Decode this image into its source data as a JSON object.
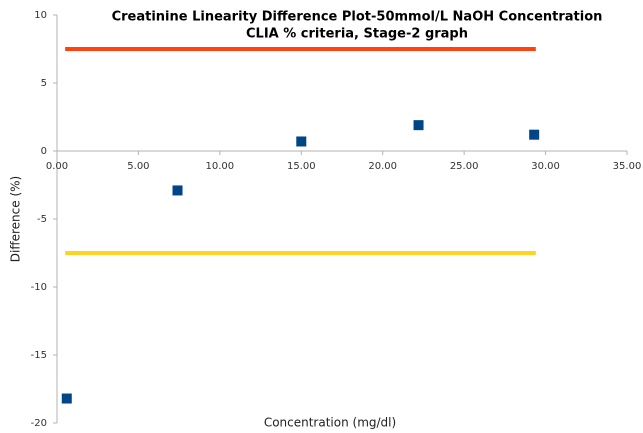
{
  "chart_data": {
    "type": "scatter",
    "title": "Creatinine Linearity Difference Plot-50mmol/L NaOH Concentration",
    "subtitle": "CLIA % criteria, Stage-2 graph",
    "x_label": "Concentration (mg/dl)",
    "y_label": "Difference (%)",
    "xlim": [
      0,
      35
    ],
    "ylim": [
      -20,
      10
    ],
    "xticks": [
      {
        "value": 0,
        "label": "0.00"
      },
      {
        "value": 5,
        "label": "5.00"
      },
      {
        "value": 10,
        "label": "10.00"
      },
      {
        "value": 15,
        "label": "15.00"
      },
      {
        "value": 20,
        "label": "20.00"
      },
      {
        "value": 25,
        "label": "25.00"
      },
      {
        "value": 30,
        "label": "30.00"
      },
      {
        "value": 35,
        "label": "35.00"
      }
    ],
    "yticks": [
      -20,
      -15,
      -10,
      -5,
      0,
      5,
      10
    ],
    "grid": false,
    "series": [
      {
        "mode": "markers",
        "color": "#004586",
        "x": [
          0.6,
          7.4,
          15.0,
          22.2,
          29.3
        ],
        "values": [
          -18.2,
          -2.9,
          0.7,
          1.9,
          1.2
        ]
      },
      {
        "mode": "line",
        "color": "#ff420e",
        "x": [
          0.5,
          29.4
        ],
        "values": [
          7.5,
          7.5
        ]
      },
      {
        "mode": "line",
        "color": "#ffd320",
        "x": [
          0.5,
          29.4
        ],
        "values": [
          -7.5,
          -7.5
        ]
      }
    ]
  }
}
